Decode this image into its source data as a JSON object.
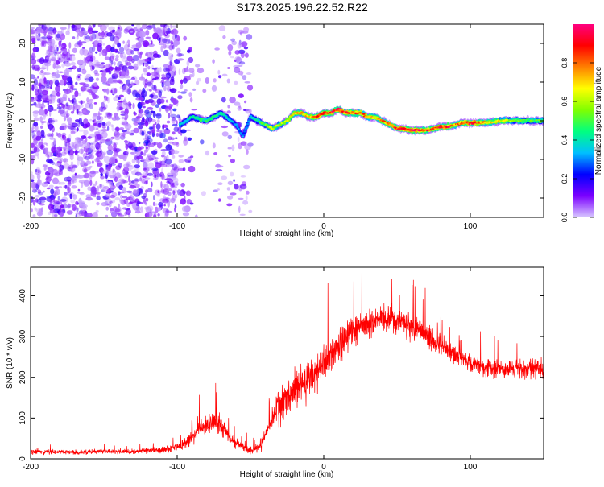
{
  "title": "S173.2025.196.22.52.R22",
  "chart_data": [
    {
      "type": "heatmap",
      "xlabel": "Height of straight line (km)",
      "ylabel": "Frequency (Hz)",
      "xlim": [
        -200,
        150
      ],
      "ylim": [
        -25,
        25
      ],
      "x_ticks": [
        -200,
        -100,
        0,
        100
      ],
      "y_ticks": [
        -20,
        -10,
        0,
        10,
        20
      ],
      "colorbar": {
        "label": "Normalized spectral amplitude",
        "range": [
          0,
          1
        ],
        "ticks": [
          "0.0",
          "0.2",
          "0.4",
          "0.6",
          "0.8"
        ],
        "colormap": [
          "#d8c8ff",
          "#7b00ff",
          "#0000ff",
          "#00bfff",
          "#00ff80",
          "#80ff00",
          "#ffff00",
          "#ff8000",
          "#ff0000",
          "#ff0080"
        ]
      },
      "noise_region_x": [
        -200,
        -50
      ],
      "ridge": {
        "x": [
          -98,
          -90,
          -80,
          -70,
          -60,
          -55,
          -50,
          -45,
          -40,
          -35,
          -30,
          -25,
          -20,
          -15,
          -10,
          -5,
          0,
          5,
          10,
          15,
          20,
          25,
          30,
          35,
          40,
          45,
          50,
          55,
          60,
          65,
          70,
          75,
          80,
          85,
          90,
          95,
          100,
          105,
          110,
          120,
          130,
          140,
          150
        ],
        "freq": [
          -1,
          1,
          0,
          2,
          -1,
          -4,
          1,
          0,
          -1,
          -2,
          -1,
          0,
          2,
          2,
          1,
          1,
          2,
          2,
          3,
          2,
          2,
          2,
          1,
          1,
          0,
          -1,
          -2,
          -2,
          -2.5,
          -2.5,
          -2.5,
          -2,
          -1.5,
          -1.5,
          -1,
          -0.5,
          -0.5,
          -0.5,
          -0.5,
          0,
          0,
          0,
          0
        ],
        "amplitude": [
          0.35,
          0.4,
          0.45,
          0.4,
          0.3,
          0.3,
          0.35,
          0.45,
          0.55,
          0.6,
          0.6,
          0.65,
          0.7,
          0.7,
          0.75,
          0.8,
          0.85,
          0.85,
          0.9,
          0.85,
          0.8,
          0.8,
          0.75,
          0.7,
          0.75,
          0.8,
          0.85,
          0.85,
          0.9,
          0.9,
          0.85,
          0.8,
          0.85,
          0.9,
          0.75,
          0.8,
          0.9,
          0.85,
          0.75,
          0.65,
          0.55,
          0.5,
          0.5
        ]
      }
    },
    {
      "type": "line",
      "xlabel": "Height of straight line (km)",
      "ylabel": "SNR (10 * v/v)",
      "xlim": [
        -200,
        150
      ],
      "ylim": [
        0,
        470
      ],
      "x_ticks": [
        -200,
        -100,
        0,
        100
      ],
      "y_ticks": [
        0,
        100,
        200,
        300,
        400
      ],
      "color": "#ff0000",
      "series": [
        {
          "x": [
            -200,
            -190,
            -180,
            -170,
            -160,
            -150,
            -140,
            -130,
            -120,
            -110,
            -100,
            -95,
            -90,
            -85,
            -80,
            -75,
            -70,
            -65,
            -60,
            -55,
            -50,
            -45,
            -40,
            -35,
            -30,
            -25,
            -20,
            -15,
            -10,
            -5,
            0,
            5,
            10,
            15,
            20,
            25,
            30,
            35,
            40,
            45,
            50,
            55,
            60,
            65,
            70,
            75,
            80,
            85,
            90,
            95,
            100,
            110,
            120,
            130,
            140,
            150
          ],
          "y": [
            18,
            17,
            18,
            16,
            17,
            18,
            17,
            18,
            20,
            22,
            28,
            35,
            50,
            70,
            85,
            90,
            80,
            55,
            40,
            30,
            20,
            25,
            55,
            95,
            130,
            150,
            170,
            185,
            195,
            215,
            235,
            255,
            275,
            295,
            310,
            320,
            330,
            335,
            340,
            340,
            340,
            335,
            325,
            315,
            300,
            290,
            275,
            265,
            255,
            245,
            235,
            225,
            220,
            218,
            220,
            222
          ],
          "spread": [
            10,
            10,
            10,
            10,
            10,
            10,
            10,
            10,
            12,
            14,
            18,
            25,
            30,
            40,
            45,
            45,
            40,
            30,
            22,
            18,
            15,
            20,
            35,
            55,
            70,
            80,
            85,
            85,
            85,
            80,
            80,
            75,
            70,
            65,
            60,
            60,
            55,
            55,
            55,
            55,
            55,
            50,
            50,
            50,
            45,
            45,
            45,
            40,
            40,
            40,
            40,
            40,
            40,
            40,
            40,
            40
          ]
        }
      ]
    }
  ]
}
